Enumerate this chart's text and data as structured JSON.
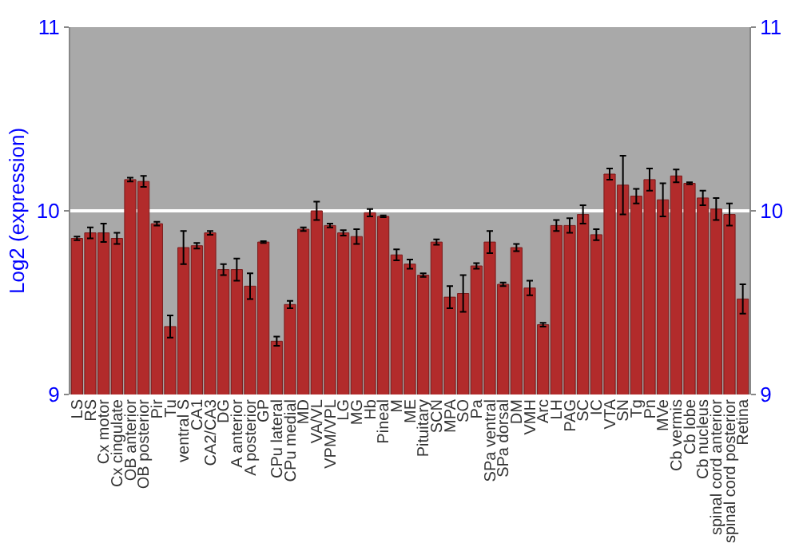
{
  "chart_data": {
    "type": "bar",
    "ylabel": "Log2 (expression)",
    "categories": [
      "LS",
      "RS",
      "Cx motor",
      "Cx cingulate",
      "OB anterior",
      "OB posterior",
      "Pir",
      "Tu",
      "ventral S",
      "CA1",
      "CA2/CA3",
      "DG",
      "A anterior",
      "A posterior",
      "GP",
      "CPu lateral",
      "CPu medial",
      "MD",
      "VA/VL",
      "VPM/VPL",
      "LG",
      "MG",
      "Hb",
      "Pineal",
      "M",
      "ME",
      "Pituitary",
      "SCN",
      "MPA",
      "SO",
      "Pa",
      "SPa ventral",
      "SPa dorsal",
      "DM",
      "VMH",
      "Arc",
      "LH",
      "PAG",
      "SC",
      "IC",
      "VTA",
      "SN",
      "Tg",
      "Pn",
      "MVe",
      "Cb vermis",
      "Cb lobe",
      "Cb nucleus",
      "spinal cord anterior",
      "spinal cord posterior",
      "Retina"
    ],
    "values": [
      9.85,
      9.88,
      9.88,
      9.85,
      10.17,
      10.16,
      9.93,
      9.37,
      9.8,
      9.81,
      9.88,
      9.68,
      9.68,
      9.59,
      9.83,
      9.29,
      9.49,
      9.9,
      10.0,
      9.92,
      9.88,
      9.86,
      9.99,
      9.97,
      9.76,
      9.71,
      9.65,
      9.83,
      9.53,
      9.55,
      9.7,
      9.83,
      9.6,
      9.8,
      9.58,
      9.38,
      9.92,
      9.92,
      9.98,
      9.87,
      10.2,
      10.14,
      10.08,
      10.17,
      10.06,
      10.19,
      10.15,
      10.07,
      10.01,
      9.98,
      9.52
    ],
    "errors": [
      0.01,
      0.03,
      0.05,
      0.03,
      0.01,
      0.03,
      0.01,
      0.06,
      0.09,
      0.015,
      0.01,
      0.03,
      0.06,
      0.07,
      0.005,
      0.025,
      0.02,
      0.01,
      0.05,
      0.01,
      0.015,
      0.04,
      0.02,
      0.005,
      0.03,
      0.025,
      0.01,
      0.015,
      0.06,
      0.1,
      0.015,
      0.06,
      0.01,
      0.02,
      0.04,
      0.01,
      0.03,
      0.04,
      0.05,
      0.03,
      0.03,
      0.16,
      0.04,
      0.06,
      0.09,
      0.035,
      0.005,
      0.04,
      0.06,
      0.06,
      0.08
    ],
    "color": "#b22b2b",
    "ylim": [
      9,
      11
    ],
    "yticks": [
      9,
      10,
      11
    ],
    "y2lim": [
      9,
      11
    ],
    "y2ticks": [
      9,
      10,
      11
    ],
    "grid": "y"
  }
}
